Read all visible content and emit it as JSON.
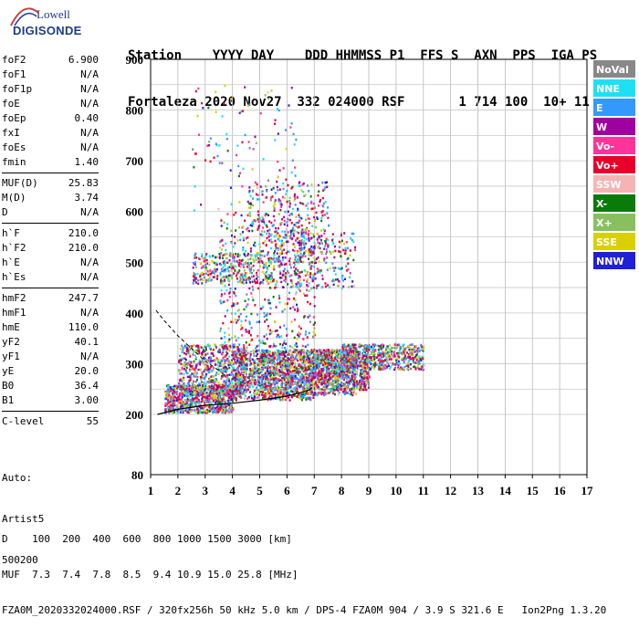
{
  "logo": {
    "brand": "Lowell",
    "product": "DIGISONDE"
  },
  "header": {
    "line1": "Station    YYYY DAY    DDD HHMMSS P1  FFS S  AXN  PPS  IGA PS",
    "line2": "Fortaleza 2020 Nov27  332 024000 RSF       1 714 100  10+ 11"
  },
  "params": {
    "group1": [
      {
        "label": "foF2",
        "value": "6.900"
      },
      {
        "label": "foF1",
        "value": "N/A"
      },
      {
        "label": "foF1p",
        "value": "N/A"
      },
      {
        "label": "foE",
        "value": "N/A"
      },
      {
        "label": "foEp",
        "value": "0.40"
      },
      {
        "label": "fxI",
        "value": "N/A"
      },
      {
        "label": "foEs",
        "value": "N/A"
      },
      {
        "label": "fmin",
        "value": "1.40"
      }
    ],
    "group2": [
      {
        "label": "MUF(D)",
        "value": "25.83"
      },
      {
        "label": "M(D)",
        "value": "3.74"
      },
      {
        "label": "D",
        "value": "N/A"
      }
    ],
    "group3": [
      {
        "label": "h`F",
        "value": "210.0"
      },
      {
        "label": "h`F2",
        "value": "210.0"
      },
      {
        "label": "h`E",
        "value": "N/A"
      },
      {
        "label": "h`Es",
        "value": "N/A"
      }
    ],
    "group4": [
      {
        "label": "hmF2",
        "value": "247.7"
      },
      {
        "label": "hmF1",
        "value": "N/A"
      },
      {
        "label": "hmE",
        "value": "110.0"
      },
      {
        "label": "yF2",
        "value": "40.1"
      },
      {
        "label": "yF1",
        "value": "N/A"
      },
      {
        "label": "yE",
        "value": "20.0"
      },
      {
        "label": "B0",
        "value": "36.4"
      },
      {
        "label": "B1",
        "value": "3.00"
      }
    ],
    "group5": [
      {
        "label": "C-level",
        "value": "55"
      }
    ]
  },
  "auto": {
    "line1": "Auto:",
    "line2": "Artist5",
    "line3": "500200"
  },
  "bottom": {
    "line1": "D    100  200  400  600  800 1000 1500 3000 [km]",
    "line2": "MUF  7.3  7.4  7.8  8.5  9.4 10.9 15.0 25.8 [MHz]",
    "line3": "FZA0M_2020332024000.RSF / 320fx256h 50 kHz 5.0 km / DPS-4 FZA0M 904 / 3.9 S 321.6 E   Ion2Png 1.3.20"
  },
  "chart_data": {
    "type": "scatter",
    "title": "",
    "xlabel": "",
    "ylabel": "",
    "xlim": [
      1,
      17
    ],
    "ylim": [
      80,
      900
    ],
    "x_ticks": [
      "1",
      "2",
      "3",
      "4",
      "5",
      "6",
      "7",
      "8",
      "9",
      "10",
      "11",
      "12",
      "13",
      "14",
      "15",
      "16",
      "17"
    ],
    "y_ticks": [
      "80",
      "200",
      "300",
      "400",
      "500",
      "600",
      "700",
      "800",
      "900"
    ],
    "grid": true,
    "legend_position": "right",
    "legend": [
      {
        "name": "NoVal",
        "color": "#888888"
      },
      {
        "name": "NNE",
        "color": "#1ee0f5"
      },
      {
        "name": "E",
        "color": "#3399ff"
      },
      {
        "name": "W",
        "color": "#a000a0"
      },
      {
        "name": "Vo-",
        "color": "#ff3399"
      },
      {
        "name": "Vo+",
        "color": "#e8002a"
      },
      {
        "name": "SSW",
        "color": "#f4b4b4"
      },
      {
        "name": "X-",
        "color": "#0a7a0a"
      },
      {
        "name": "X+",
        "color": "#88c060"
      },
      {
        "name": "SSE",
        "color": "#d8d000"
      },
      {
        "name": "NNW",
        "color": "#2020d8"
      }
    ],
    "profile_curve": {
      "x": [
        1.25,
        2,
        3,
        4,
        5,
        6,
        6.5,
        6.8,
        6.9
      ],
      "y": [
        200,
        210,
        218,
        222,
        228,
        236,
        243,
        248,
        252
      ]
    },
    "dashed_curve": {
      "x": [
        1.2,
        1.5,
        2,
        2.5,
        3,
        3.6
      ],
      "y": [
        405,
        385,
        355,
        330,
        305,
        283
      ]
    },
    "point_clusters": [
      {
        "x": [
          1.5,
          4.0
        ],
        "y": [
          205,
          260
        ],
        "weight": 0.9
      },
      {
        "x": [
          2.0,
          4.5
        ],
        "y": [
          240,
          340
        ],
        "weight": 0.7
      },
      {
        "x": [
          4.0,
          7.0
        ],
        "y": [
          230,
          330
        ],
        "weight": 1.0
      },
      {
        "x": [
          5.0,
          8.5
        ],
        "y": [
          240,
          330
        ],
        "weight": 0.9
      },
      {
        "x": [
          7.0,
          9.0
        ],
        "y": [
          250,
          330
        ],
        "weight": 0.8
      },
      {
        "x": [
          8.0,
          11.0
        ],
        "y": [
          290,
          340
        ],
        "weight": 0.6
      },
      {
        "x": [
          3.5,
          7.0
        ],
        "y": [
          330,
          600
        ],
        "weight": 0.55
      },
      {
        "x": [
          4.5,
          7.5
        ],
        "y": [
          500,
          660
        ],
        "weight": 0.35
      },
      {
        "x": [
          2.5,
          5.5
        ],
        "y": [
          460,
          520
        ],
        "weight": 0.35
      },
      {
        "x": [
          5.5,
          8.5
        ],
        "y": [
          450,
          560
        ],
        "weight": 0.3
      },
      {
        "x": [
          2.5,
          6.5
        ],
        "y": [
          600,
          850
        ],
        "weight": 0.12
      }
    ]
  }
}
